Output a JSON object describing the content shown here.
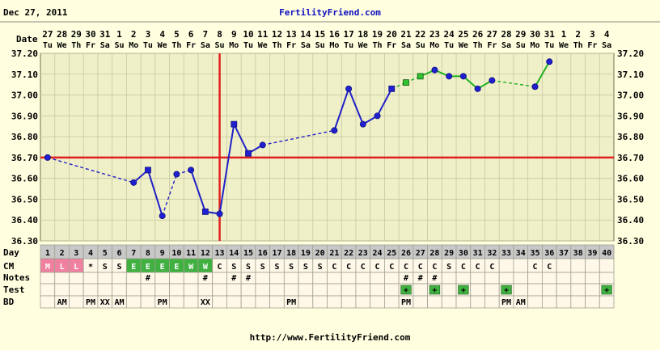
{
  "header": {
    "date": "Dec 27, 2011",
    "site": "FertilityFriend.com"
  },
  "footer": {
    "url": "http://www.FertilityFriend.com"
  },
  "row_labels": {
    "date": "Date",
    "day": "Day",
    "cm": "CM",
    "notes": "Notes",
    "test": "Test",
    "bd": "BD"
  },
  "colors": {
    "background": "#FFFFE0",
    "plot": "#F0F0C8",
    "grid": "#C8C8A0",
    "line_pre": "#2020C8",
    "line_post": "#20B020",
    "cover_line": "#E02020",
    "menses": "#F080A0",
    "egg_white": "#40B040",
    "test_positive": "#40B040"
  },
  "chart_data": {
    "type": "line",
    "ylim": [
      36.3,
      37.2
    ],
    "y_ticks": [
      "36.30",
      "36.40",
      "36.50",
      "36.60",
      "36.70",
      "36.80",
      "36.90",
      "37.00",
      "37.10",
      "37.20"
    ],
    "date_days": [
      "27",
      "28",
      "29",
      "30",
      "31",
      "1",
      "2",
      "3",
      "4",
      "5",
      "6",
      "7",
      "8",
      "9",
      "10",
      "11",
      "12",
      "13",
      "14",
      "15",
      "16",
      "17",
      "18",
      "19",
      "20",
      "21",
      "22",
      "23",
      "24",
      "25",
      "26",
      "27",
      "28",
      "29",
      "30",
      "31",
      "1",
      "2",
      "3",
      "4"
    ],
    "weekdays": [
      "Tu",
      "We",
      "Th",
      "Fr",
      "Sa",
      "Su",
      "Mo",
      "Tu",
      "We",
      "Th",
      "Fr",
      "Sa",
      "Su",
      "Mo",
      "Tu",
      "We",
      "Th",
      "Fr",
      "Sa",
      "Su",
      "Mo",
      "Tu",
      "We",
      "Th",
      "Fr",
      "Sa",
      "Su",
      "Mo",
      "Tu",
      "We",
      "Th",
      "Fr",
      "Sa",
      "Su",
      "Mo",
      "Tu",
      "We",
      "Th",
      "Fr",
      "Sa"
    ],
    "cycle_days": [
      1,
      2,
      3,
      4,
      5,
      6,
      7,
      8,
      9,
      10,
      11,
      12,
      13,
      14,
      15,
      16,
      17,
      18,
      19,
      20,
      21,
      22,
      23,
      24,
      25,
      26,
      27,
      28,
      29,
      30,
      31,
      32,
      33,
      34,
      35,
      36,
      37,
      38,
      39,
      40
    ],
    "temps": [
      {
        "day": 1,
        "temp": 36.7,
        "marker": "circle"
      },
      {
        "day": 7,
        "temp": 36.58,
        "marker": "circle"
      },
      {
        "day": 8,
        "temp": 36.64,
        "marker": "square"
      },
      {
        "day": 9,
        "temp": 36.42,
        "marker": "circle"
      },
      {
        "day": 10,
        "temp": 36.62,
        "marker": "circle"
      },
      {
        "day": 11,
        "temp": 36.64,
        "marker": "circle"
      },
      {
        "day": 12,
        "temp": 36.44,
        "marker": "square"
      },
      {
        "day": 13,
        "temp": 36.43,
        "marker": "circle"
      },
      {
        "day": 14,
        "temp": 36.86,
        "marker": "square"
      },
      {
        "day": 15,
        "temp": 36.72,
        "marker": "square"
      },
      {
        "day": 16,
        "temp": 36.76,
        "marker": "circle"
      },
      {
        "day": 21,
        "temp": 36.83,
        "marker": "circle"
      },
      {
        "day": 22,
        "temp": 37.03,
        "marker": "circle"
      },
      {
        "day": 23,
        "temp": 36.86,
        "marker": "circle"
      },
      {
        "day": 24,
        "temp": 36.9,
        "marker": "circle"
      },
      {
        "day": 25,
        "temp": 37.03,
        "marker": "square"
      },
      {
        "day": 26,
        "temp": 37.06,
        "marker": "square-green"
      },
      {
        "day": 27,
        "temp": 37.09,
        "marker": "square-green"
      },
      {
        "day": 28,
        "temp": 37.12,
        "marker": "circle"
      },
      {
        "day": 29,
        "temp": 37.09,
        "marker": "circle"
      },
      {
        "day": 30,
        "temp": 37.09,
        "marker": "circle"
      },
      {
        "day": 31,
        "temp": 37.03,
        "marker": "circle"
      },
      {
        "day": 32,
        "temp": 37.07,
        "marker": "circle"
      },
      {
        "day": 35,
        "temp": 37.04,
        "marker": "circle"
      },
      {
        "day": 36,
        "temp": 37.16,
        "marker": "circle"
      }
    ],
    "segments": [
      {
        "from": 1,
        "to": 7,
        "style": "dashed",
        "color": "blue"
      },
      {
        "from": 7,
        "to": 8,
        "style": "solid",
        "color": "blue"
      },
      {
        "from": 8,
        "to": 9,
        "style": "solid",
        "color": "blue"
      },
      {
        "from": 9,
        "to": 10,
        "style": "dashed",
        "color": "blue"
      },
      {
        "from": 10,
        "to": 11,
        "style": "dashed",
        "color": "blue"
      },
      {
        "from": 11,
        "to": 12,
        "style": "solid",
        "color": "blue"
      },
      {
        "from": 12,
        "to": 13,
        "style": "solid",
        "color": "blue"
      },
      {
        "from": 13,
        "to": 14,
        "style": "solid",
        "color": "blue"
      },
      {
        "from": 14,
        "to": 15,
        "style": "solid",
        "color": "blue"
      },
      {
        "from": 15,
        "to": 16,
        "style": "solid",
        "color": "blue"
      },
      {
        "from": 16,
        "to": 21,
        "style": "dashed",
        "color": "blue"
      },
      {
        "from": 21,
        "to": 22,
        "style": "solid",
        "color": "blue"
      },
      {
        "from": 22,
        "to": 23,
        "style": "solid",
        "color": "blue"
      },
      {
        "from": 23,
        "to": 24,
        "style": "solid",
        "color": "blue"
      },
      {
        "from": 24,
        "to": 25,
        "style": "solid",
        "color": "blue"
      },
      {
        "from": 25,
        "to": 26,
        "style": "dashed",
        "color": "green"
      },
      {
        "from": 26,
        "to": 27,
        "style": "dashed",
        "color": "green"
      },
      {
        "from": 27,
        "to": 28,
        "style": "solid",
        "color": "green"
      },
      {
        "from": 28,
        "to": 29,
        "style": "solid",
        "color": "green"
      },
      {
        "from": 29,
        "to": 30,
        "style": "solid",
        "color": "green"
      },
      {
        "from": 30,
        "to": 31,
        "style": "solid",
        "color": "green"
      },
      {
        "from": 31,
        "to": 32,
        "style": "solid",
        "color": "green"
      },
      {
        "from": 32,
        "to": 35,
        "style": "dashed",
        "color": "green"
      },
      {
        "from": 35,
        "to": 36,
        "style": "solid",
        "color": "green"
      }
    ],
    "coverline": 36.7,
    "ovulation_day": 13,
    "cm": [
      "M",
      "L",
      "L",
      "*",
      "S",
      "S",
      "E",
      "E",
      "E",
      "E",
      "W",
      "W",
      "C",
      "S",
      "S",
      "S",
      "S",
      "S",
      "S",
      "S",
      "C",
      "C",
      "C",
      "C",
      "C",
      "C",
      "C",
      "C",
      "S",
      "C",
      "C",
      "C",
      "",
      "",
      "C",
      "C",
      "",
      "",
      "",
      ""
    ],
    "notes": [
      "",
      "",
      "",
      "",
      "",
      "",
      "",
      "#",
      "",
      "",
      "",
      "#",
      "",
      "#",
      "#",
      "",
      "",
      "",
      "",
      "",
      "",
      "",
      "",
      "",
      "",
      "#",
      "#",
      "#",
      "",
      "",
      "",
      "",
      "",
      "",
      "",
      "",
      "",
      "",
      "",
      ""
    ],
    "test": [
      "",
      "",
      "",
      "",
      "",
      "",
      "",
      "",
      "",
      "",
      "",
      "",
      "",
      "",
      "",
      "",
      "",
      "",
      "",
      "",
      "",
      "",
      "",
      "",
      "",
      "+",
      "",
      "+",
      "",
      "+",
      "",
      "",
      "+",
      "",
      "",
      "",
      "",
      "",
      "",
      "+"
    ],
    "bd": [
      "",
      "AM",
      "",
      "PM",
      "XX",
      "AM",
      "",
      "",
      "PM",
      "",
      "",
      "XX",
      "",
      "",
      "",
      "",
      "",
      "PM",
      "",
      "",
      "",
      "",
      "",
      "",
      "",
      "PM",
      "",
      "",
      "",
      "",
      "",
      "",
      "PM",
      "AM",
      "",
      "",
      "",
      "",
      "",
      ""
    ]
  }
}
